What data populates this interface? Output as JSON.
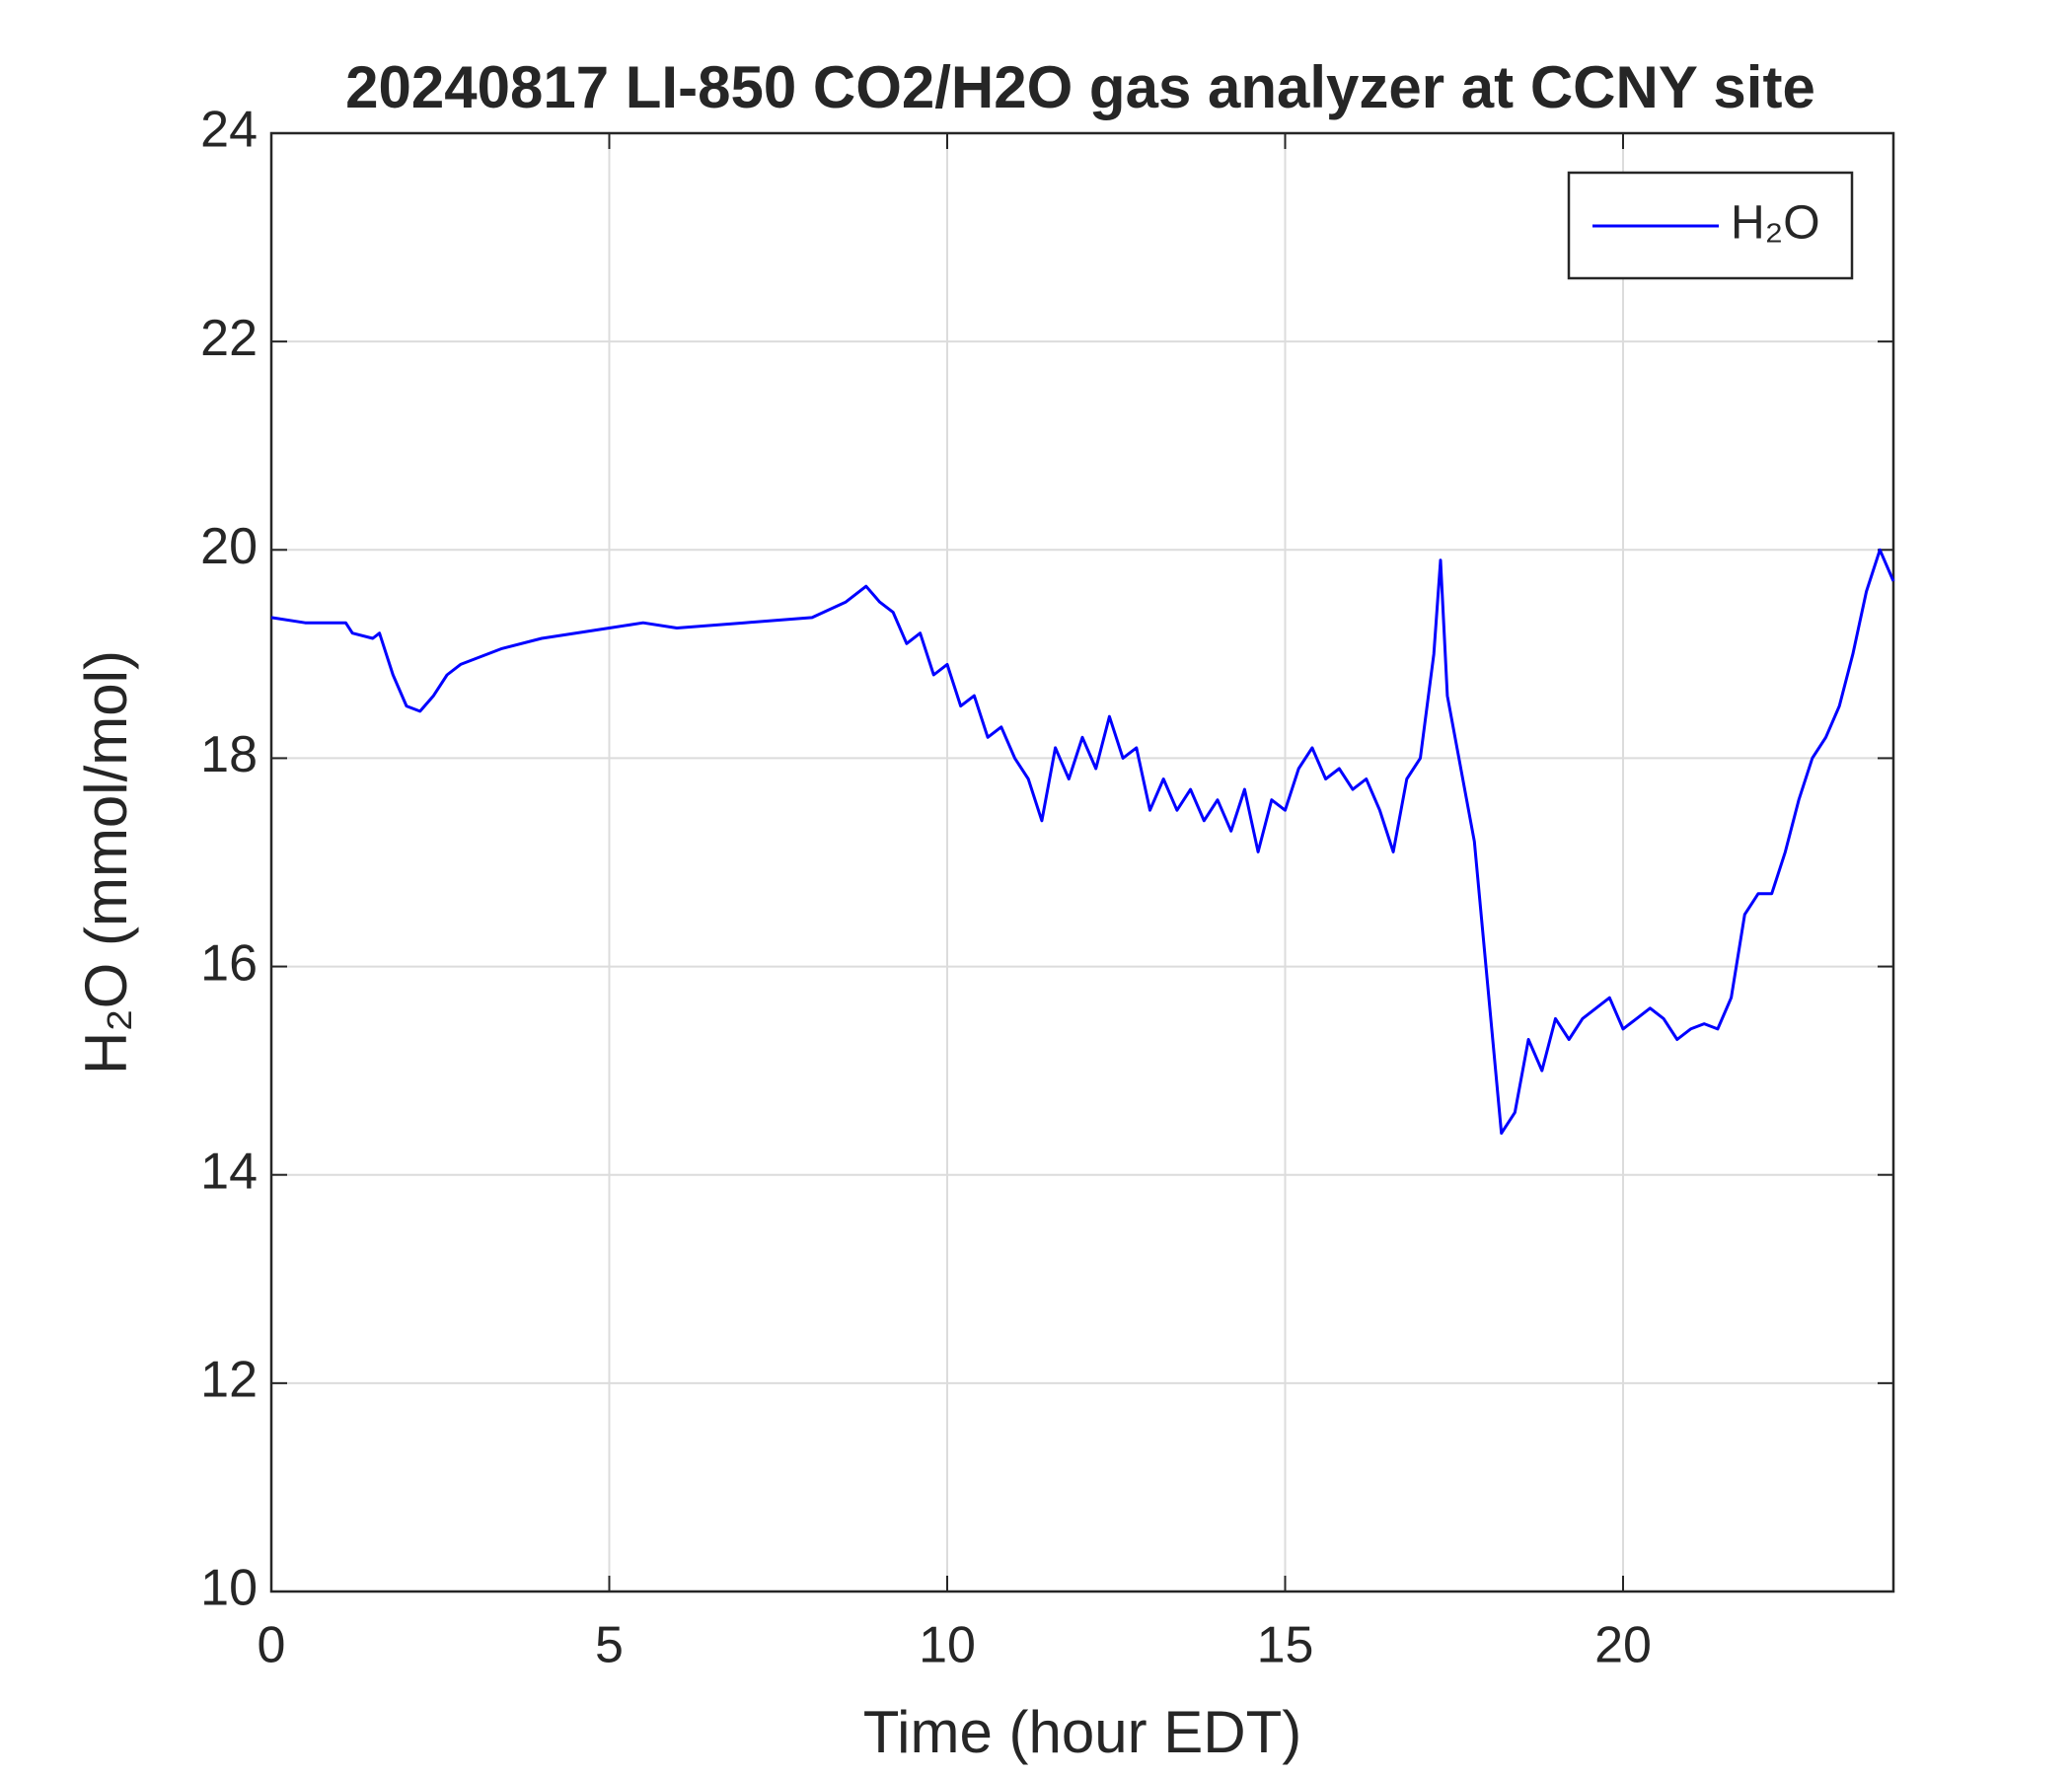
{
  "chart_data": {
    "type": "line",
    "title": "20240817 LI-850 CO2/H2O gas analyzer at CCNY site",
    "xlabel": "Time (hour EDT)",
    "ylabel": "H₂O (mmol/mol)",
    "xlim": [
      0,
      24
    ],
    "xticks": [
      0,
      5,
      10,
      15,
      20
    ],
    "ylim": [
      10,
      24
    ],
    "yticks": [
      10,
      12,
      14,
      16,
      18,
      20,
      22,
      24
    ],
    "grid": true,
    "legend": "upper right",
    "x": [
      0,
      0.5,
      1.1,
      1.2,
      1.5,
      1.6,
      1.8,
      2.0,
      2.2,
      2.4,
      2.6,
      2.8,
      3.0,
      3.4,
      4,
      5,
      5.5,
      6,
      7,
      8,
      8.5,
      8.8,
      9,
      9.2,
      9.4,
      9.6,
      9.8,
      10,
      10.2,
      10.4,
      10.6,
      10.8,
      11,
      11.2,
      11.4,
      11.6,
      11.8,
      12,
      12.2,
      12.4,
      12.6,
      12.8,
      13,
      13.2,
      13.4,
      13.6,
      13.8,
      14,
      14.2,
      14.4,
      14.6,
      14.8,
      15,
      15.2,
      15.4,
      15.6,
      15.8,
      16,
      16.2,
      16.4,
      16.6,
      16.8,
      17,
      17.2,
      17.3,
      17.4,
      17.6,
      17.8,
      18,
      18.2,
      18.4,
      18.6,
      18.8,
      19,
      19.2,
      19.4,
      19.6,
      19.8,
      20,
      20.2,
      20.4,
      20.6,
      20.8,
      21,
      21.2,
      21.4,
      21.6,
      21.8,
      22,
      22.2,
      22.4,
      22.6,
      22.8,
      23,
      23.2,
      23.4,
      23.6,
      23.8,
      24
    ],
    "series": [
      {
        "name": "H₂O",
        "color": "#0000ff",
        "values": [
          19.35,
          19.3,
          19.3,
          19.2,
          19.15,
          19.2,
          18.8,
          18.5,
          18.45,
          18.6,
          18.8,
          18.9,
          18.95,
          19.05,
          19.15,
          19.25,
          19.3,
          19.25,
          19.3,
          19.35,
          19.5,
          19.65,
          19.5,
          19.4,
          19.1,
          19.2,
          18.8,
          18.9,
          18.5,
          18.6,
          18.2,
          18.3,
          18.0,
          17.8,
          17.4,
          18.1,
          17.8,
          18.2,
          17.9,
          18.4,
          18.0,
          18.1,
          17.5,
          17.8,
          17.5,
          17.7,
          17.4,
          17.6,
          17.3,
          17.7,
          17.1,
          17.6,
          17.5,
          17.9,
          18.1,
          17.8,
          17.9,
          17.7,
          17.8,
          17.5,
          17.1,
          17.8,
          18.0,
          19.0,
          19.9,
          18.6,
          17.9,
          17.2,
          15.8,
          14.4,
          14.6,
          15.3,
          15.0,
          15.5,
          15.3,
          15.5,
          15.6,
          15.7,
          15.4,
          15.5,
          15.6,
          15.5,
          15.3,
          15.4,
          15.45,
          15.4,
          15.7,
          16.5,
          16.7,
          16.7,
          17.1,
          17.6,
          18.0,
          18.2,
          18.5,
          19.0,
          19.6,
          20.0,
          19.7
        ]
      }
    ]
  }
}
